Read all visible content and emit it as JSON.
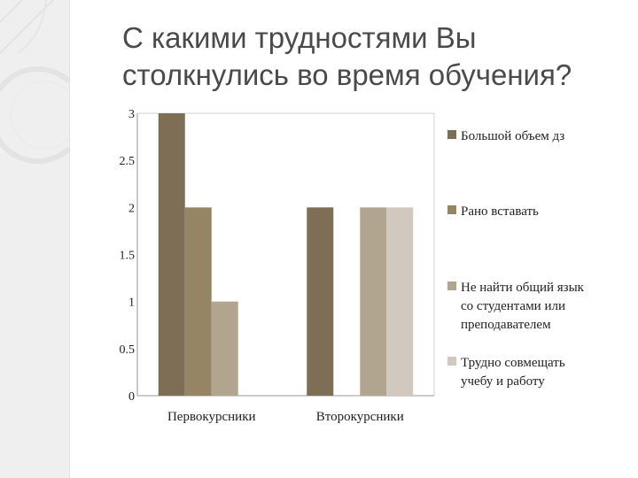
{
  "slide": {
    "title_line1": "С какими трудностями Вы",
    "title_line2": "столкнулись во время обучения?"
  },
  "colors": {
    "side_panel": "#efefef",
    "title": "#4a4a4a",
    "deco_lines": "#e3e3e3"
  },
  "chart_data": {
    "type": "bar",
    "categories": [
      "Первокурсники",
      "Второкурсники"
    ],
    "series": [
      {
        "name": "Большой объем дз",
        "values": [
          3,
          2
        ],
        "color": "#7d6e55"
      },
      {
        "name": "Рано вставать",
        "values": [
          2,
          0
        ],
        "color": "#968565"
      },
      {
        "name": "Не найти общий язык со студентами или преподавателем",
        "values": [
          1,
          2
        ],
        "color": "#b2a590"
      },
      {
        "name": "Трудно совмещать учебу и работу",
        "values": [
          0,
          2
        ],
        "color": "#d1c9bf"
      }
    ],
    "legend_lines": [
      [
        "Большой объем дз"
      ],
      [
        "Рано вставать"
      ],
      [
        "Не найти общий язык",
        "со студентами или",
        "преподавателем"
      ],
      [
        "Трудно совмещать",
        "учебу и работу"
      ]
    ],
    "ylim": [
      0,
      3
    ],
    "yticks": [
      "0",
      "0.5",
      "1",
      "1.5",
      "2",
      "2.5",
      "3"
    ],
    "ytick_values": [
      0,
      0.5,
      1,
      1.5,
      2,
      2.5,
      3
    ],
    "grid": false,
    "legend_position": "right"
  }
}
